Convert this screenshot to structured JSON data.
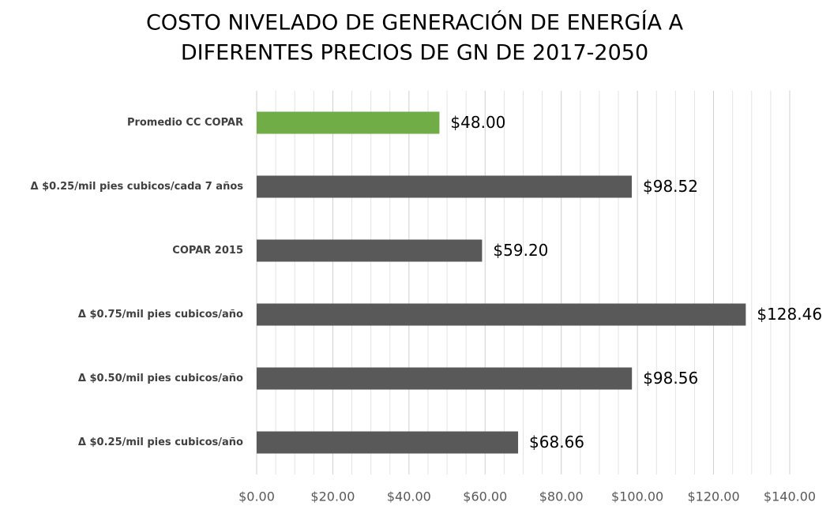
{
  "chart_data": {
    "type": "barh",
    "title": [
      "COSTO NIVELADO DE GENERACIÓN DE ENERGÍA A",
      "DIFERENTES PRECIOS DE GN DE 2017-2050"
    ],
    "categories": [
      "Promedio CC COPAR",
      "Δ $0.25/mil pies cubicos/cada 7 años",
      "COPAR 2015",
      "Δ $0.75/mil pies cubicos/año",
      "Δ $0.50/mil pies cubicos/año",
      "Δ $0.25/mil pies cubicos/año"
    ],
    "values": [
      48.0,
      98.52,
      59.2,
      128.46,
      98.56,
      68.66
    ],
    "value_labels": [
      "$48.00",
      "$98.52",
      "$59.20",
      "$128.46",
      "$98.56",
      "$68.66"
    ],
    "colors": [
      "#70ad47",
      "#595959",
      "#595959",
      "#595959",
      "#595959",
      "#595959"
    ],
    "xlim": [
      0,
      140
    ],
    "xticks": [
      {
        "value": 0,
        "label": "$0.00"
      },
      {
        "value": 20,
        "label": "$20.00"
      },
      {
        "value": 40,
        "label": "$40.00"
      },
      {
        "value": 60,
        "label": "$60.00"
      },
      {
        "value": 80,
        "label": "$80.00"
      },
      {
        "value": 100,
        "label": "$100.00"
      },
      {
        "value": 120,
        "label": "$120.00"
      },
      {
        "value": 140,
        "label": "$140.00"
      }
    ],
    "xminorticks": [
      5,
      10,
      15,
      25,
      30,
      35,
      45,
      50,
      55,
      65,
      70,
      75,
      85,
      90,
      95,
      105,
      110,
      115,
      125,
      130,
      135
    ],
    "grid": true
  }
}
